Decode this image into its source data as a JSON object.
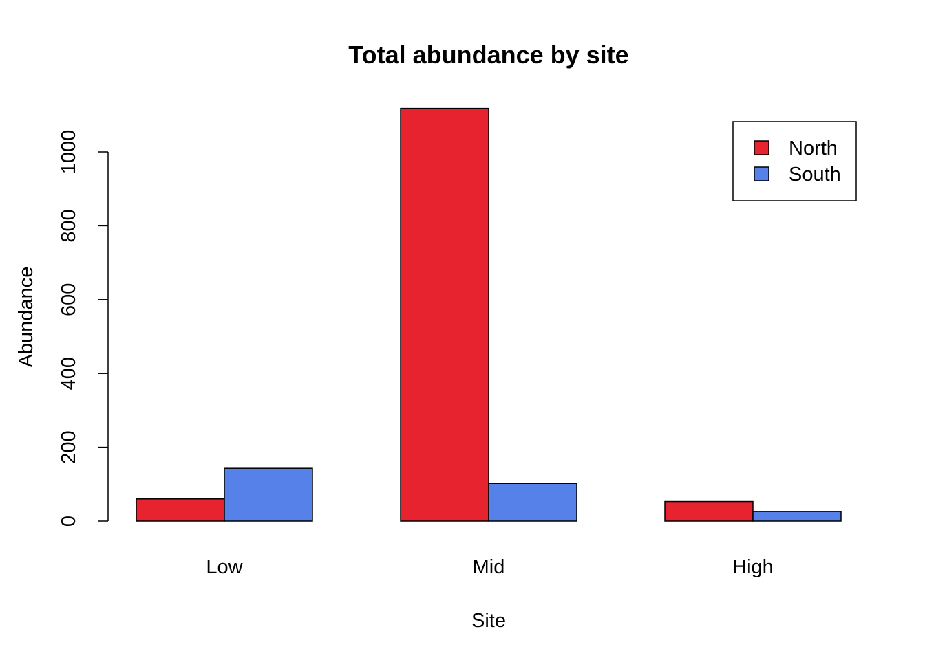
{
  "chart_data": {
    "type": "bar",
    "title": "Total abundance by site",
    "xlabel": "Site",
    "ylabel": "Abundance",
    "categories": [
      "Low",
      "Mid",
      "High"
    ],
    "series": [
      {
        "name": "North",
        "color": "#E6232E",
        "values": [
          60,
          1118,
          53
        ]
      },
      {
        "name": "South",
        "color": "#5581E9",
        "values": [
          143,
          102,
          26
        ]
      }
    ],
    "ylim": [
      0,
      1118
    ],
    "yticks": [
      0,
      200,
      400,
      600,
      800,
      1000
    ],
    "grid": false,
    "legend_position": "top-right",
    "bar_layout": "grouped"
  }
}
